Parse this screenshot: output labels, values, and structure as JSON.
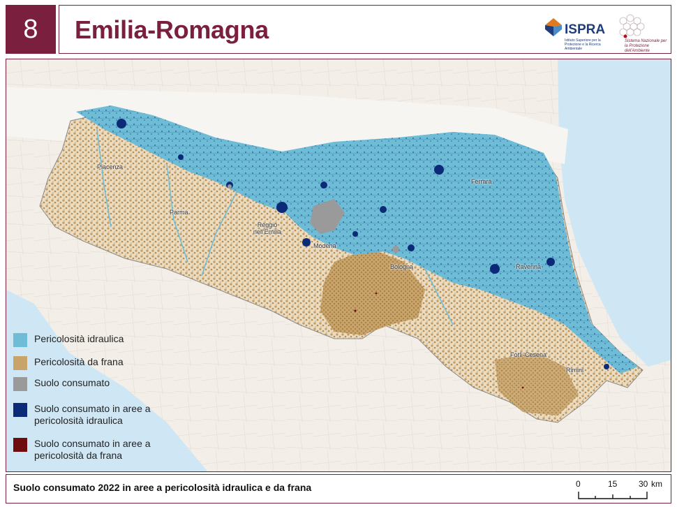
{
  "header": {
    "number": "8",
    "title": "Emilia-Romagna"
  },
  "logos": {
    "ispra_name": "ISPRA",
    "ispra_subtitle": "Istituto Superiore per la Protezione e la Ricerca Ambientale",
    "snpa_text": "Sistema Nazionale per la Protezione dell'Ambiente"
  },
  "cities": {
    "piacenza": "Piacenza",
    "parma": "Parma",
    "reggio": "Reggio nell'Emilia",
    "modena": "Modena",
    "bologna": "Bologna",
    "ferrara": "Ferrara",
    "ravenna": "Ravenna",
    "forli": "Forlì-Cesena",
    "rimini": "Rimini"
  },
  "legend": {
    "items": [
      {
        "label": "Pericolosità idraulica",
        "color": "#6fbcd6"
      },
      {
        "label": "Pericolosità da frana",
        "color": "#c9a46a"
      },
      {
        "label": "Suolo consumato",
        "color": "#9a9a9a"
      },
      {
        "label": "Suolo consumato in aree a pericolosità idraulica",
        "color": "#0b2a78"
      },
      {
        "label": "Suolo consumato in aree a pericolosità da frana",
        "color": "#6e0d0d"
      }
    ]
  },
  "footer": {
    "caption": "Suolo consumato 2022 in aree a pericolosità idraulica e da frana",
    "scale_0": "0",
    "scale_15": "15",
    "scale_30": "30",
    "scale_unit": "km"
  },
  "colors": {
    "accent": "#7a1f3d",
    "sea": "#cfe7f5",
    "hydraulic": "#6fbcd6",
    "landslide": "#c9a46a"
  }
}
